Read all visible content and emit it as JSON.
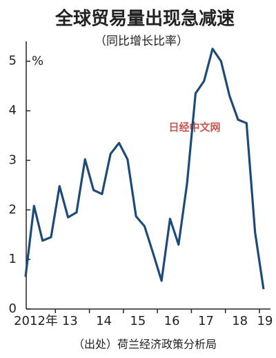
{
  "chart_data": {
    "type": "line",
    "title": "全球贸易量出现急减速",
    "subtitle": "（同比增长比率）",
    "y_unit": "%",
    "watermark": "日经中文网",
    "source": "（出处）荷兰经济政策分析局",
    "categories": [
      "2012年",
      null,
      null,
      null,
      "13",
      null,
      null,
      null,
      "14",
      null,
      null,
      null,
      "15",
      null,
      null,
      null,
      "16",
      null,
      null,
      null,
      "17",
      null,
      null,
      null,
      "18",
      null,
      null,
      null,
      "19"
    ],
    "series": [
      {
        "name": null,
        "color": "#1d4a78",
        "values": [
          0.65,
          2.08,
          1.38,
          1.45,
          2.48,
          1.85,
          1.95,
          3.02,
          2.4,
          2.32,
          3.13,
          3.35,
          3.02,
          1.87,
          1.67,
          1.13,
          0.57,
          1.82,
          1.3,
          2.53,
          4.35,
          4.6,
          5.25,
          5.0,
          4.3,
          3.82,
          3.75,
          1.55,
          0.4
        ]
      }
    ],
    "ylim": [
      0,
      5.4
    ],
    "yticks": [
      0,
      1,
      2,
      3,
      4,
      5
    ],
    "grid": false
  }
}
